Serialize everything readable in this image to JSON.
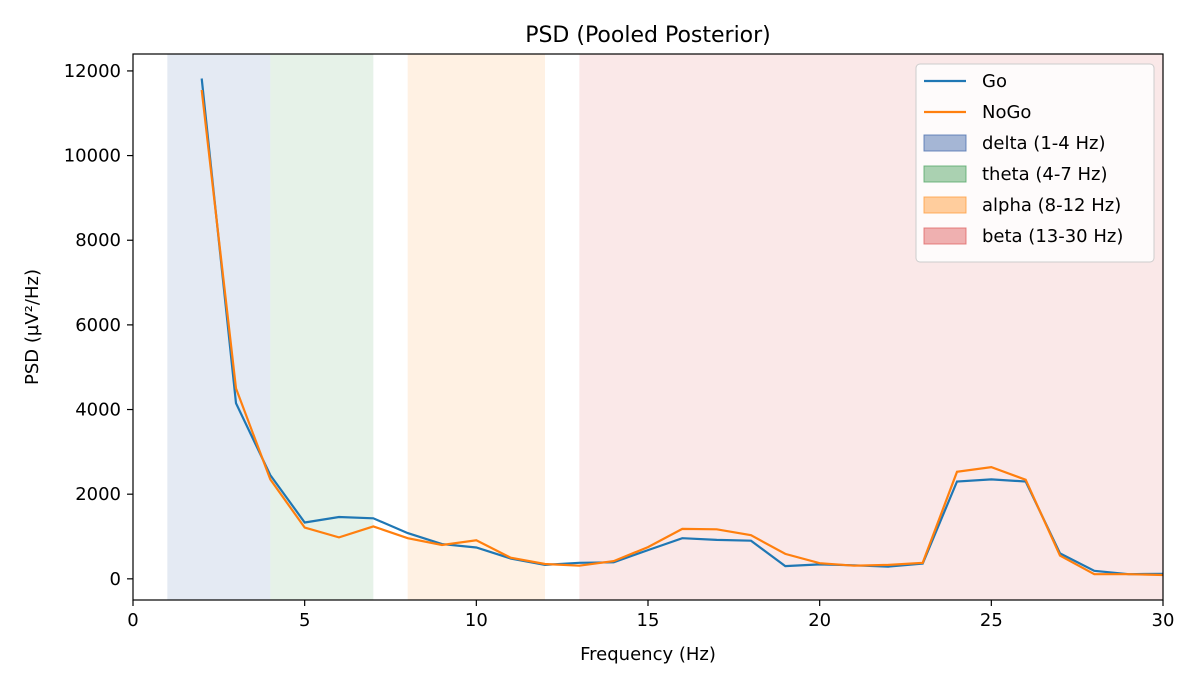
{
  "chart_data": {
    "type": "line",
    "title": "PSD (Pooled Posterior)",
    "xlabel": "Frequency (Hz)",
    "ylabel": "PSD (µV²/Hz)",
    "xlim": [
      0,
      30
    ],
    "ylim": [
      -500,
      12400
    ],
    "xticks": [
      0,
      5,
      10,
      15,
      20,
      25,
      30
    ],
    "yticks": [
      0,
      2000,
      4000,
      6000,
      8000,
      10000,
      12000
    ],
    "grid": false,
    "legend_position": "top-right",
    "bands": [
      {
        "name": "delta (1-4 Hz)",
        "range": [
          1,
          4
        ],
        "color": "#4c72b0"
      },
      {
        "name": "theta (4-7 Hz)",
        "range": [
          4,
          7
        ],
        "color": "#55a868"
      },
      {
        "name": "alpha (8-12 Hz)",
        "range": [
          8,
          12
        ],
        "color": "#ff9f40"
      },
      {
        "name": "beta (13-30 Hz)",
        "range": [
          13,
          30
        ],
        "color": "#e06666"
      }
    ],
    "x": [
      2,
      3,
      4,
      5,
      6,
      7,
      8,
      9,
      10,
      11,
      12,
      13,
      14,
      15,
      16,
      17,
      18,
      19,
      20,
      21,
      22,
      23,
      24,
      25,
      26,
      27,
      28,
      29,
      30
    ],
    "series": [
      {
        "name": "Go",
        "color": "#1f77b4",
        "values": [
          11820,
          4150,
          2450,
          1330,
          1460,
          1430,
          1080,
          820,
          740,
          480,
          330,
          380,
          390,
          680,
          960,
          920,
          900,
          300,
          340,
          320,
          290,
          360,
          2300,
          2350,
          2300,
          600,
          190,
          110,
          120
        ]
      },
      {
        "name": "NoGo",
        "color": "#ff7f0e",
        "values": [
          11550,
          4500,
          2350,
          1210,
          980,
          1240,
          960,
          800,
          910,
          500,
          350,
          310,
          420,
          750,
          1180,
          1170,
          1030,
          590,
          370,
          310,
          330,
          380,
          2530,
          2640,
          2340,
          550,
          110,
          110,
          90
        ]
      }
    ]
  }
}
